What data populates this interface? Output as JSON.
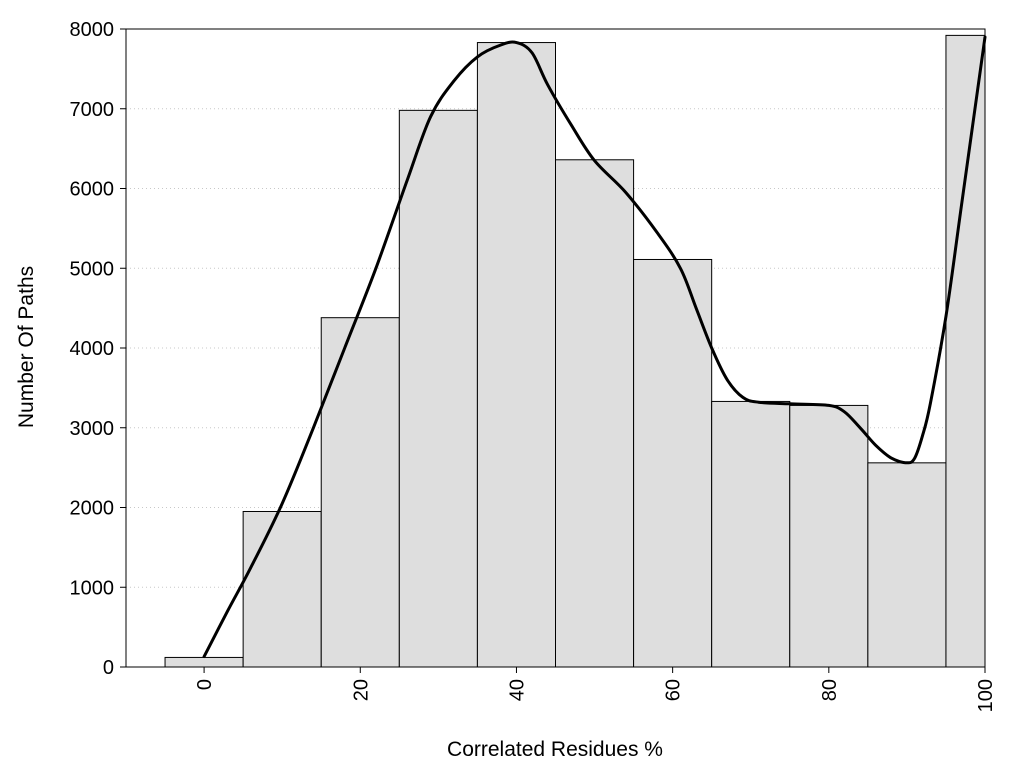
{
  "chart_data": {
    "type": "bar",
    "xlabel": "Correlated Residues %",
    "ylabel": "Number Of Paths",
    "xlim": [
      -10,
      100
    ],
    "ylim": [
      0,
      8000
    ],
    "yticks": [
      0,
      1000,
      2000,
      3000,
      4000,
      5000,
      6000,
      7000,
      8000
    ],
    "xticks": [
      0,
      20,
      40,
      60,
      80,
      100
    ],
    "grid": "horizontal dotted",
    "legend": "none",
    "bar_color": "#dedede",
    "bar_width": 10,
    "series": [
      {
        "type": "bar",
        "x": [
          0,
          10,
          20,
          30,
          40,
          50,
          60,
          70,
          80,
          90,
          100
        ],
        "values": [
          120,
          1950,
          4380,
          6980,
          7830,
          6360,
          5110,
          3330,
          3280,
          2560,
          7920
        ]
      },
      {
        "type": "line",
        "x": [
          0,
          3,
          6,
          10,
          14,
          18,
          22,
          26,
          29,
          32,
          35,
          38,
          40,
          42,
          44,
          47,
          50,
          54,
          58,
          61,
          63,
          65,
          67,
          69,
          71,
          75,
          80,
          82,
          84,
          86,
          88,
          90,
          91,
          92,
          93,
          95,
          97,
          100
        ],
        "values": [
          130,
          700,
          1250,
          2050,
          3000,
          4000,
          5000,
          6100,
          6900,
          7350,
          7650,
          7800,
          7830,
          7700,
          7300,
          6800,
          6350,
          5950,
          5450,
          5000,
          4500,
          4000,
          3600,
          3380,
          3320,
          3300,
          3280,
          3200,
          3000,
          2780,
          2620,
          2560,
          2620,
          2900,
          3300,
          4400,
          5800,
          7900
        ]
      }
    ]
  }
}
